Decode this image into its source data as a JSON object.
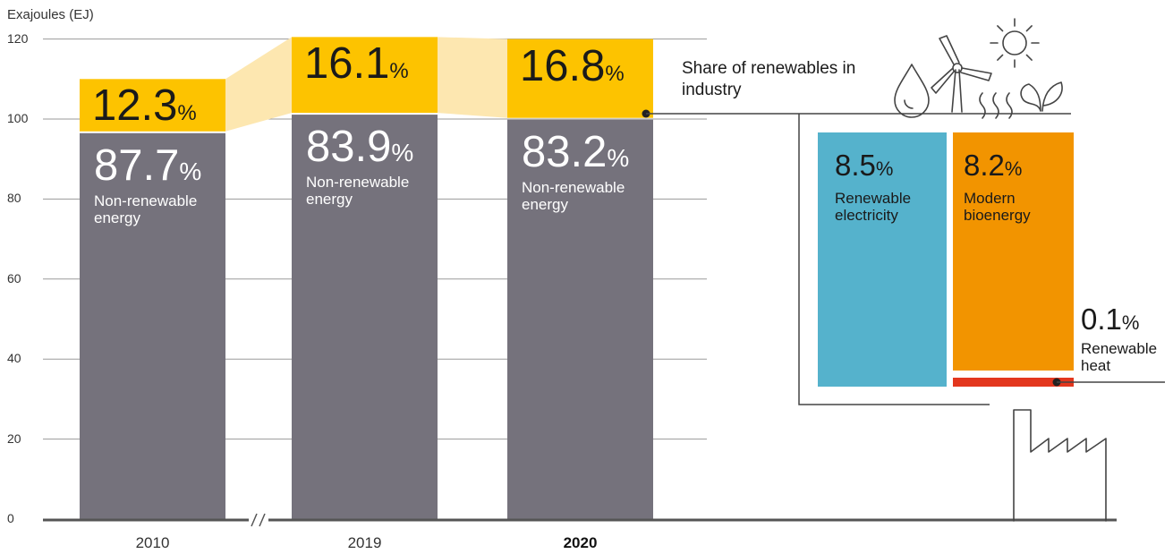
{
  "chart_data": {
    "type": "bar",
    "stacked": true,
    "ylabel": "Exajoules (EJ)",
    "ylim": [
      0,
      120
    ],
    "yticks": [
      0,
      20,
      40,
      60,
      80,
      100,
      120
    ],
    "categories": [
      "2010",
      "2019",
      "2020"
    ],
    "highlight_category": "2020",
    "axis_break_after": "2010",
    "totals": [
      110,
      120.5,
      120
    ],
    "series": [
      {
        "name": "Non-renewable energy",
        "share_labels": [
          "87.7",
          "83.9",
          "83.2"
        ],
        "color": "#75727c"
      },
      {
        "name": "Share of renewables in industry",
        "share_labels": [
          "12.3",
          "16.1",
          "16.8"
        ],
        "color": "#fdc300"
      }
    ],
    "non_renewable_label": "Non-renewable energy",
    "renewables_label": "Share of renewables in industry",
    "percent_symbol": "%",
    "breakdown": {
      "items": [
        {
          "name": "Renewable electricity",
          "share": "8.5",
          "color": "#55b2cc"
        },
        {
          "name": "Modern bioenergy",
          "share": "8.2",
          "color": "#f29400"
        },
        {
          "name": "Renewable heat",
          "share": "0.1",
          "color": "#e3371e"
        }
      ]
    },
    "grid": true
  }
}
